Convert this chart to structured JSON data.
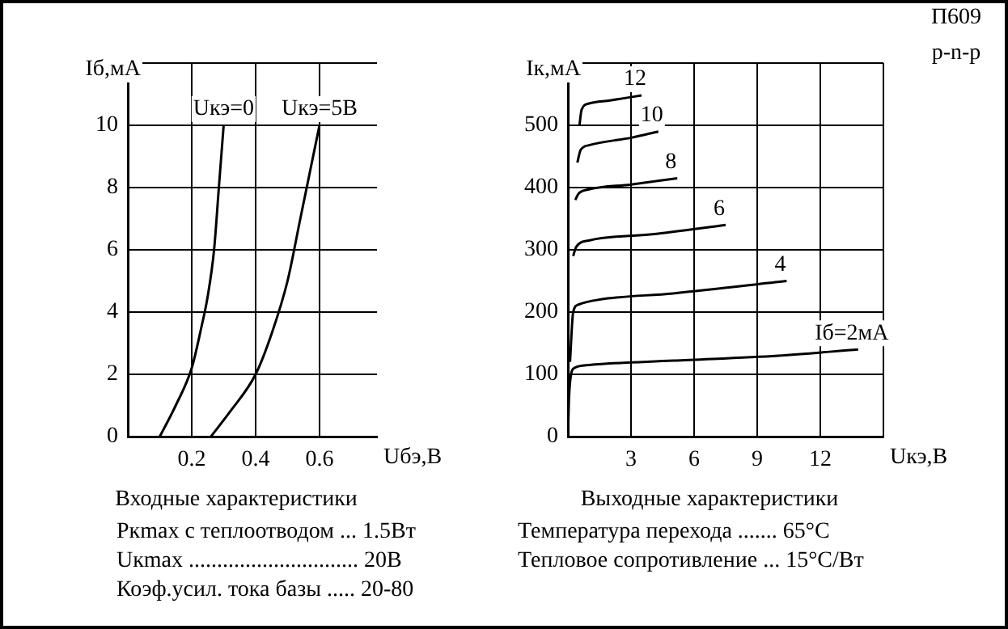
{
  "chart_data": [
    {
      "type": "line",
      "title": "Входные характеристики",
      "xlabel": "Uбэ,В",
      "ylabel": "Iб,мА",
      "xlim": [
        0,
        0.78
      ],
      "xticks": [
        0.2,
        0.4,
        0.6
      ],
      "ylim": [
        0,
        12
      ],
      "yticks": [
        0,
        2,
        4,
        6,
        8,
        10,
        {
          "value": 12,
          "label": null
        }
      ],
      "grid": true,
      "legend": false,
      "marker": "none",
      "line_style": "solid",
      "series": [
        {
          "name": "Uкэ=0",
          "color": "#000000",
          "x": [
            0.1,
            0.15,
            0.2,
            0.23,
            0.25,
            0.27,
            0.285,
            0.3
          ],
          "values": [
            0,
            1,
            2.2,
            3.5,
            4.5,
            6,
            8,
            10
          ]
        },
        {
          "name": "Uкэ=5В",
          "color": "#000000",
          "x": [
            0.26,
            0.32,
            0.4,
            0.45,
            0.5,
            0.54,
            0.57,
            0.6
          ],
          "values": [
            0,
            0.8,
            2,
            3.3,
            5,
            7,
            8.5,
            10
          ]
        }
      ],
      "annotations": [
        "Pкmax с теплоотводом ... 1.5Вт",
        "Uкmax .............................. 20В",
        "Коэф.усил. тока базы ..... 20-80"
      ]
    },
    {
      "type": "line",
      "title": "Выходные характеристики",
      "xlabel": "Uкэ,В",
      "ylabel": "Iк,мА",
      "xlim": [
        0,
        15
      ],
      "xticks": [
        {
          "value": 0,
          "label": null
        },
        3,
        6,
        9,
        12,
        {
          "value": 15,
          "label": null
        }
      ],
      "ylim": [
        0,
        600
      ],
      "yticks": [
        0,
        100,
        200,
        300,
        400,
        500,
        {
          "value": 600,
          "label": null
        }
      ],
      "grid": true,
      "legend": false,
      "marker": "none",
      "line_style": "solid",
      "series": [
        {
          "name": "Iб=2мА",
          "color": "#000000",
          "x": [
            0,
            0.05,
            0.15,
            0.3,
            1,
            5,
            10,
            13.8
          ],
          "values": [
            0,
            60,
            100,
            110,
            115,
            122,
            130,
            140
          ]
        },
        {
          "name": "4",
          "color": "#000000",
          "x": [
            0.1,
            0.25,
            0.5,
            1.5,
            5,
            10.4
          ],
          "values": [
            120,
            200,
            212,
            220,
            230,
            250
          ]
        },
        {
          "name": "6",
          "color": "#000000",
          "x": [
            0.25,
            0.4,
            1,
            4,
            7.5
          ],
          "values": [
            290,
            305,
            315,
            325,
            340
          ]
        },
        {
          "name": "8",
          "color": "#000000",
          "x": [
            0.35,
            0.5,
            1,
            3,
            5.2
          ],
          "values": [
            380,
            390,
            397,
            405,
            415
          ]
        },
        {
          "name": "10",
          "color": "#000000",
          "x": [
            0.45,
            0.6,
            1,
            3,
            4.3
          ],
          "values": [
            440,
            460,
            468,
            480,
            490
          ]
        },
        {
          "name": "12",
          "color": "#000000",
          "x": [
            0.55,
            0.65,
            1,
            2,
            3.5
          ],
          "values": [
            500,
            525,
            535,
            540,
            548
          ]
        }
      ],
      "annotations": [
        "П609",
        "p-n-p",
        "Температура перехода ....... 65°C",
        "Тепловое сопротивление ... 15°C/Вт"
      ]
    }
  ]
}
